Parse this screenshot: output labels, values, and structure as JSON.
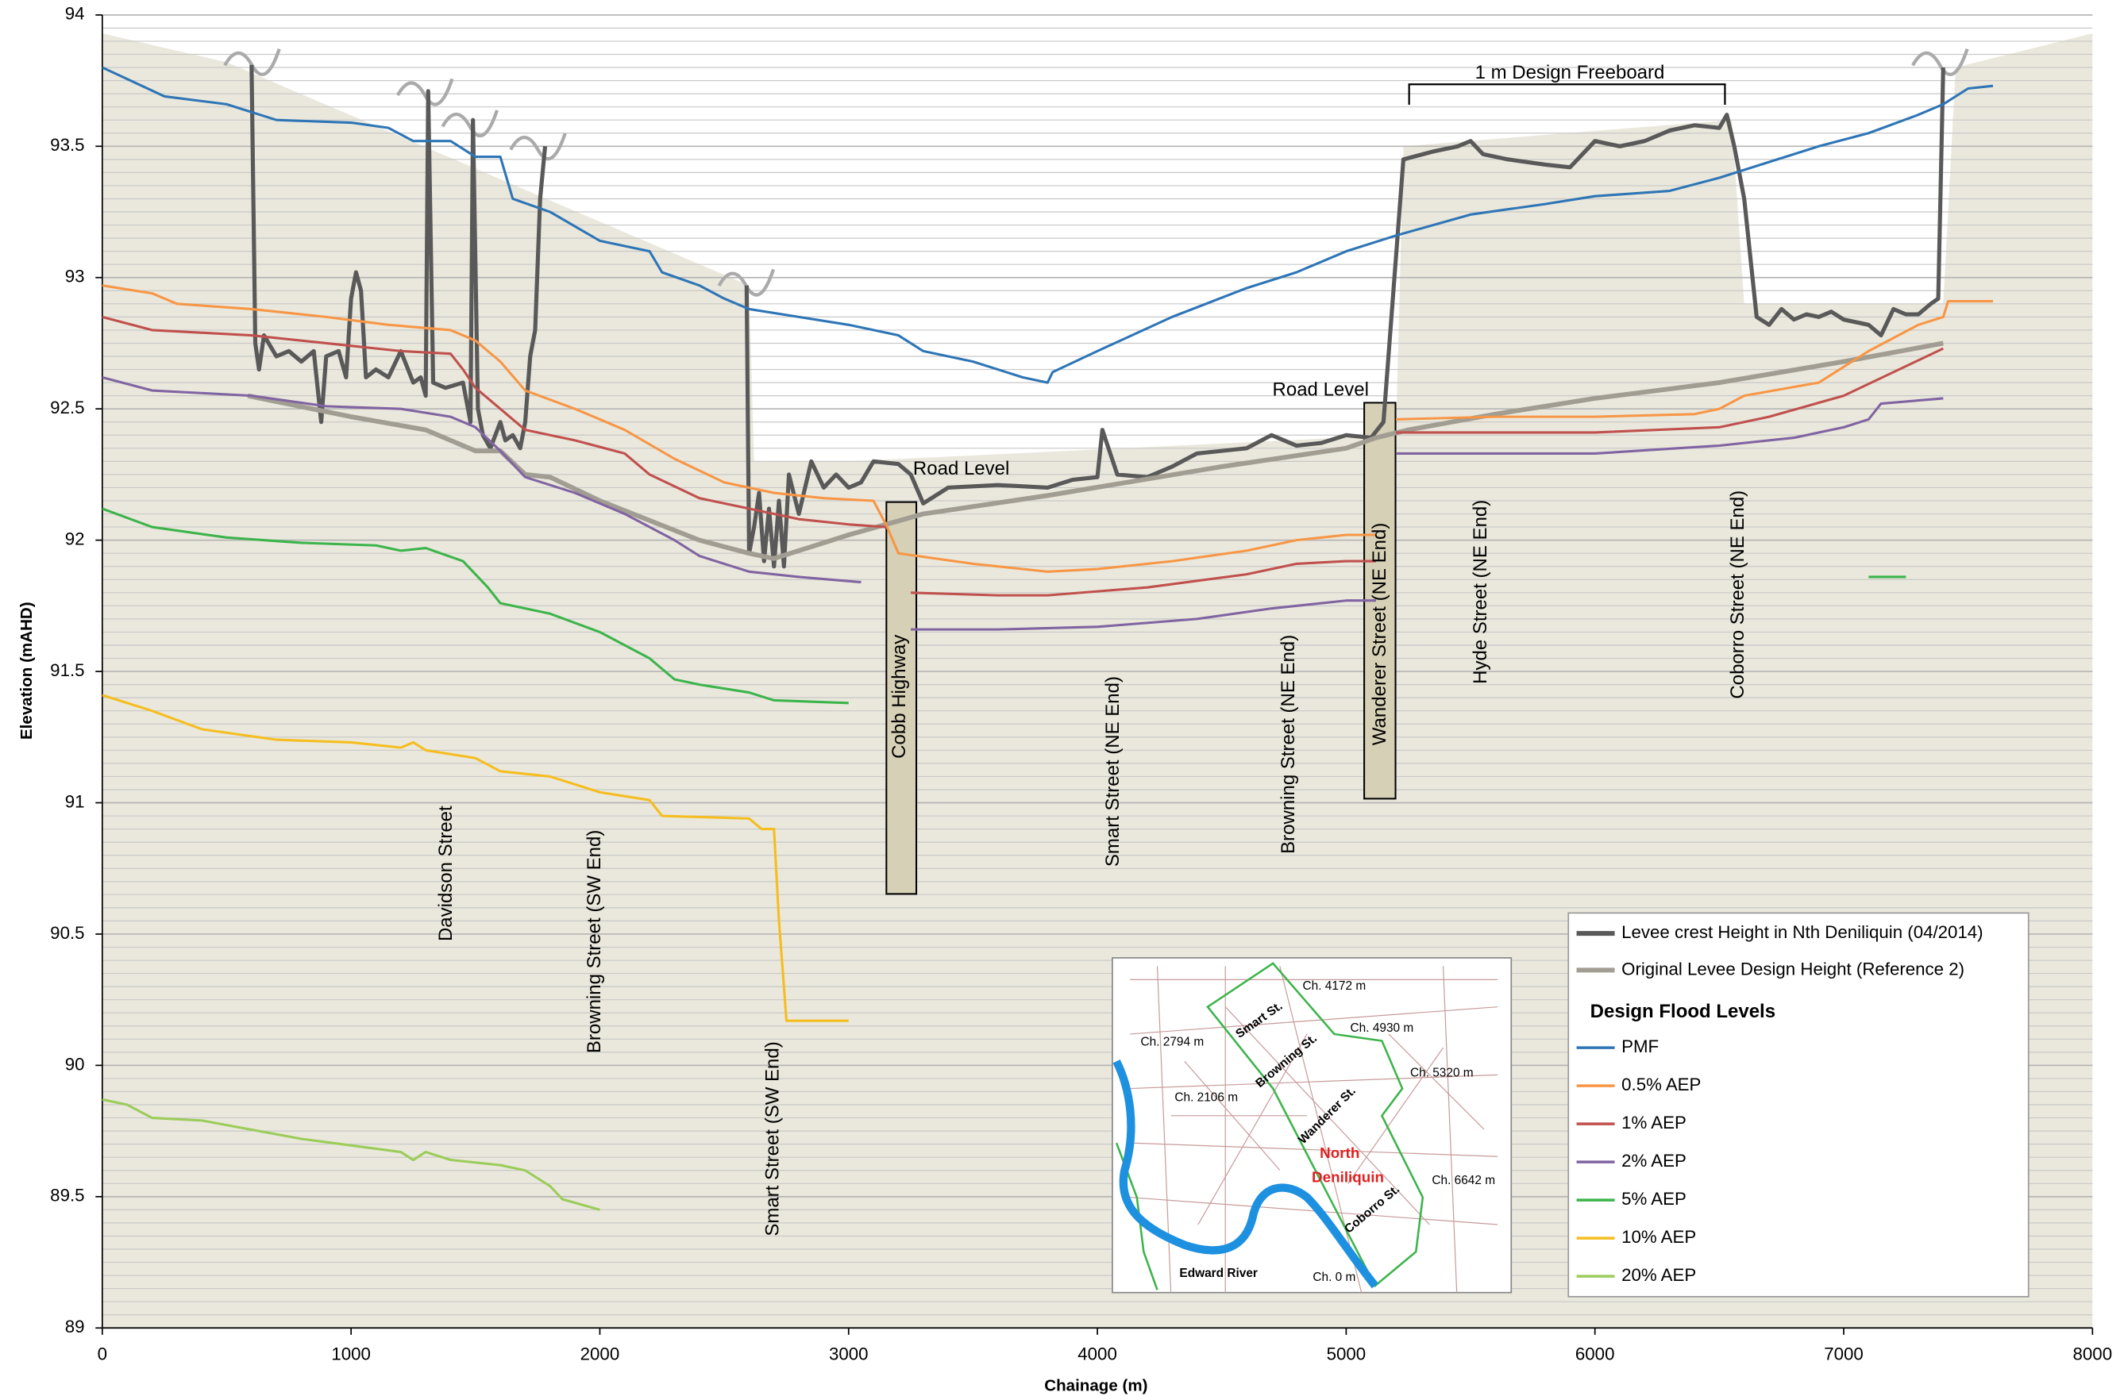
{
  "chart_data": {
    "type": "line",
    "x_label": "Chainage (m)",
    "y_label": "Elevation (mAHD)",
    "xlim": [
      0,
      8000
    ],
    "ylim": [
      89,
      94
    ],
    "xticks": [
      0,
      1000,
      2000,
      3000,
      4000,
      5000,
      6000,
      7000,
      8000
    ],
    "yticks": [
      89,
      89.5,
      90,
      90.5,
      91,
      91.5,
      92,
      92.5,
      93,
      93.5,
      94
    ],
    "grid": true,
    "shaded_area": {
      "color": "#eae8dc",
      "x": [
        0,
        500,
        2600,
        2620,
        3000,
        5200,
        5230,
        6550,
        6600,
        7400,
        7450,
        8000
      ],
      "values": [
        93.93,
        93.82,
        92.97,
        92.3,
        92.3,
        92.4,
        93.5,
        93.6,
        92.9,
        92.9,
        93.8,
        93.93
      ]
    },
    "legend_heading": "Design Flood Levels",
    "series": [
      {
        "name": "Levee crest Height in Nth Deniliquin (04/2014)",
        "color": "#595959",
        "x": [
          600,
          615,
          630,
          650,
          700,
          750,
          800,
          850,
          880,
          900,
          950,
          980,
          1000,
          1020,
          1040,
          1060,
          1100,
          1150,
          1200,
          1250,
          1280,
          1300,
          1310,
          1330,
          1380,
          1450,
          1480,
          1490,
          1510,
          1530,
          1560,
          1600,
          1620,
          1650,
          1680,
          1700,
          1720,
          1740,
          1760,
          1780,
          2200,
          2590,
          2600,
          2620,
          2640,
          2660,
          2680,
          2700,
          2720,
          2740,
          2760,
          2800,
          2850,
          2900,
          2950,
          3000,
          3050,
          3100,
          3200,
          3250,
          3300,
          3400,
          3600,
          3800,
          3900,
          4000,
          4020,
          4080,
          4200,
          4300,
          4400,
          4500,
          4600,
          4700,
          4800,
          4900,
          5000,
          5100,
          5150,
          5230,
          5350,
          5450,
          5500,
          5550,
          5650,
          5800,
          5900,
          6000,
          6100,
          6200,
          6300,
          6400,
          6500,
          6530,
          6560,
          6600,
          6650,
          6700,
          6750,
          6800,
          6850,
          6900,
          6950,
          7000,
          7100,
          7150,
          7200,
          7250,
          7300,
          7350,
          7380,
          7400
        ],
        "values": [
          93.81,
          92.75,
          92.65,
          92.78,
          92.7,
          92.72,
          92.68,
          92.72,
          92.45,
          92.7,
          92.72,
          92.62,
          92.92,
          93.02,
          92.95,
          92.62,
          92.65,
          92.62,
          92.72,
          92.6,
          92.62,
          92.55,
          93.71,
          92.6,
          92.58,
          92.6,
          92.45,
          93.6,
          92.5,
          92.4,
          92.35,
          92.45,
          92.38,
          92.4,
          92.35,
          92.45,
          92.7,
          92.8,
          93.3,
          93.5,
          null,
          92.97,
          91.95,
          92.05,
          92.18,
          91.92,
          92.12,
          91.9,
          92.15,
          91.9,
          92.25,
          92.1,
          92.3,
          92.2,
          92.25,
          92.2,
          92.22,
          92.3,
          92.29,
          92.25,
          92.14,
          92.2,
          92.21,
          92.2,
          92.23,
          92.24,
          92.42,
          92.25,
          92.24,
          92.28,
          92.33,
          92.34,
          92.35,
          92.4,
          92.36,
          92.37,
          92.4,
          92.39,
          92.45,
          93.45,
          93.48,
          93.5,
          93.52,
          93.47,
          93.45,
          93.43,
          93.42,
          93.52,
          93.5,
          93.52,
          93.56,
          93.58,
          93.57,
          93.62,
          93.5,
          93.3,
          92.85,
          92.82,
          92.88,
          92.84,
          92.86,
          92.85,
          92.87,
          92.84,
          92.82,
          92.78,
          92.88,
          92.86,
          92.86,
          92.9,
          92.92,
          93.8
        ]
      },
      {
        "name": "Original Levee Design Height (Reference 2)",
        "color": "#a19d92",
        "x": [
          585,
          1000,
          1300,
          1500,
          1600,
          1700,
          1800,
          2000,
          2400,
          2600,
          2700,
          3000,
          3300,
          3800,
          4500,
          5000,
          5120,
          5250,
          5600,
          6000,
          6500,
          7000,
          7400
        ],
        "values": [
          92.55,
          92.47,
          92.42,
          92.34,
          92.34,
          92.25,
          92.24,
          92.15,
          92.0,
          91.95,
          91.93,
          92.02,
          92.1,
          92.17,
          92.28,
          92.35,
          92.39,
          92.42,
          92.48,
          92.54,
          92.6,
          92.68,
          92.75
        ]
      },
      {
        "name": "PMF",
        "color": "#2e75b6",
        "x": [
          0,
          250,
          500,
          700,
          1000,
          1150,
          1250,
          1400,
          1500,
          1600,
          1650,
          1800,
          2000,
          2200,
          2250,
          2400,
          2500,
          2600,
          2800,
          3000,
          3200,
          3300,
          3500,
          3700,
          3800,
          3820,
          4000,
          4300,
          4600,
          4800,
          5000,
          5200,
          5500,
          5800,
          6000,
          6300,
          6500,
          6700,
          6900,
          7100,
          7300,
          7400,
          7500,
          7600
        ],
        "values": [
          93.8,
          93.69,
          93.66,
          93.6,
          93.59,
          93.57,
          93.52,
          93.52,
          93.46,
          93.46,
          93.3,
          93.25,
          93.14,
          93.1,
          93.02,
          92.97,
          92.92,
          92.88,
          92.85,
          92.82,
          92.78,
          92.72,
          92.68,
          92.62,
          92.6,
          92.64,
          92.72,
          92.85,
          92.96,
          93.02,
          93.1,
          93.16,
          93.24,
          93.28,
          93.31,
          93.33,
          93.38,
          93.44,
          93.5,
          93.55,
          93.62,
          93.66,
          93.72,
          93.73
        ]
      },
      {
        "name": "0.5% AEP",
        "color": "#f79646",
        "x": [
          0,
          200,
          300,
          600,
          900,
          1150,
          1400,
          1500,
          1600,
          1700,
          1900,
          2100,
          2300,
          2500,
          2700,
          2900,
          3100,
          3150,
          3200,
          3500,
          3800,
          4000,
          4300,
          4600,
          4800,
          5000,
          5120,
          5160,
          5200,
          5600,
          6000,
          6400,
          6500,
          6600,
          6900,
          7100,
          7300,
          7400,
          7420,
          7600
        ],
        "values": [
          92.97,
          92.94,
          92.9,
          92.88,
          92.85,
          92.82,
          92.8,
          92.76,
          92.68,
          92.57,
          92.5,
          92.42,
          92.31,
          92.22,
          92.18,
          92.16,
          92.15,
          92.06,
          91.95,
          91.91,
          91.88,
          91.89,
          91.92,
          91.96,
          92.0,
          92.02,
          92.02,
          null,
          92.46,
          92.47,
          92.47,
          92.48,
          92.5,
          92.55,
          92.6,
          92.72,
          92.82,
          92.85,
          92.91,
          92.91
        ]
      },
      {
        "name": "1% AEP",
        "color": "#c0504d",
        "x": [
          0,
          200,
          600,
          900,
          1200,
          1400,
          1450,
          1500,
          1600,
          1700,
          1900,
          2100,
          2200,
          2400,
          2600,
          2800,
          3000,
          3150,
          3200,
          3250,
          3600,
          3800,
          4200,
          4600,
          4800,
          5000,
          5120,
          5160,
          5200,
          6000,
          6500,
          6700,
          7000,
          7200,
          7400
        ],
        "values": [
          92.85,
          92.8,
          92.78,
          92.75,
          92.72,
          92.71,
          92.65,
          92.58,
          92.5,
          92.42,
          92.38,
          92.33,
          92.25,
          92.16,
          92.12,
          92.08,
          92.06,
          92.05,
          null,
          91.8,
          91.79,
          91.79,
          91.82,
          91.87,
          91.91,
          91.92,
          91.92,
          null,
          92.41,
          92.41,
          92.43,
          92.47,
          92.55,
          92.64,
          92.73
        ]
      },
      {
        "name": "2% AEP",
        "color": "#8064a2",
        "x": [
          0,
          200,
          600,
          900,
          1200,
          1400,
          1500,
          1600,
          1700,
          1900,
          2100,
          2300,
          2400,
          2600,
          2800,
          3050,
          3150,
          3250,
          3600,
          4000,
          4400,
          4700,
          5000,
          5120,
          5160,
          5200,
          6000,
          6500,
          6800,
          7000,
          7100,
          7150,
          7400
        ],
        "values": [
          92.62,
          92.57,
          92.55,
          92.51,
          92.5,
          92.47,
          92.43,
          92.34,
          92.24,
          92.18,
          92.1,
          92.0,
          91.94,
          91.88,
          91.86,
          91.84,
          null,
          91.66,
          91.66,
          91.67,
          91.7,
          91.74,
          91.77,
          91.77,
          null,
          92.33,
          92.33,
          92.36,
          92.39,
          92.43,
          92.46,
          92.52,
          92.54
        ]
      },
      {
        "name": "5% AEP",
        "color": "#3cb44b",
        "x": [
          0,
          200,
          500,
          800,
          1100,
          1200,
          1300,
          1450,
          1550,
          1600,
          1800,
          2000,
          2100,
          2200,
          2300,
          2400,
          2600,
          2700,
          3000,
          5000,
          7100,
          7250
        ],
        "values": [
          92.12,
          92.05,
          92.01,
          91.99,
          91.98,
          91.96,
          91.97,
          91.92,
          91.82,
          91.76,
          91.72,
          91.65,
          91.6,
          91.55,
          91.47,
          91.45,
          91.42,
          91.39,
          91.38,
          null,
          91.86,
          91.86
        ]
      },
      {
        "name": "10% AEP",
        "color": "#f5bd1f",
        "x": [
          0,
          200,
          400,
          700,
          1000,
          1200,
          1250,
          1300,
          1500,
          1600,
          1800,
          2000,
          2200,
          2250,
          2600,
          2650,
          2700,
          2720,
          2740,
          2750,
          3000
        ],
        "values": [
          91.41,
          91.35,
          91.28,
          91.24,
          91.23,
          91.21,
          91.23,
          91.2,
          91.17,
          91.12,
          91.1,
          91.04,
          91.01,
          90.95,
          90.94,
          90.9,
          90.9,
          90.55,
          90.3,
          90.17,
          90.17
        ]
      },
      {
        "name": "20% AEP",
        "color": "#9bcc5a",
        "x": [
          0,
          100,
          200,
          400,
          800,
          1200,
          1250,
          1300,
          1400,
          1600,
          1700,
          1800,
          1850,
          2000
        ],
        "values": [
          89.87,
          89.85,
          89.8,
          89.79,
          89.72,
          89.67,
          89.64,
          89.67,
          89.64,
          89.62,
          89.6,
          89.54,
          89.49,
          89.45
        ]
      }
    ],
    "annotations": [
      "1 m Design Freeboard",
      "Road Level",
      "Road Level",
      "Davidson Street",
      "Browning Street (SW End)",
      "Smart  Street (SW End)",
      "Cobb Highway",
      "Smart  Street (NE End)",
      "Browning Street (NE End)",
      "Wanderer Street (NE End)",
      "Hyde Street (NE End)",
      "Coborro Street (NE End)"
    ],
    "inset_map": {
      "labels": [
        "Ch. 4172 m",
        "Ch. 4930 m",
        "Ch. 2794 m",
        "Smart St.",
        "Browning St.",
        "Ch. 5320 m",
        "Ch. 2106 m",
        "Wanderer St.",
        "North",
        "Deniliquin",
        "Ch. 6642 m",
        "Coborro St.",
        "Edward River",
        "Ch. 0 m"
      ]
    }
  }
}
